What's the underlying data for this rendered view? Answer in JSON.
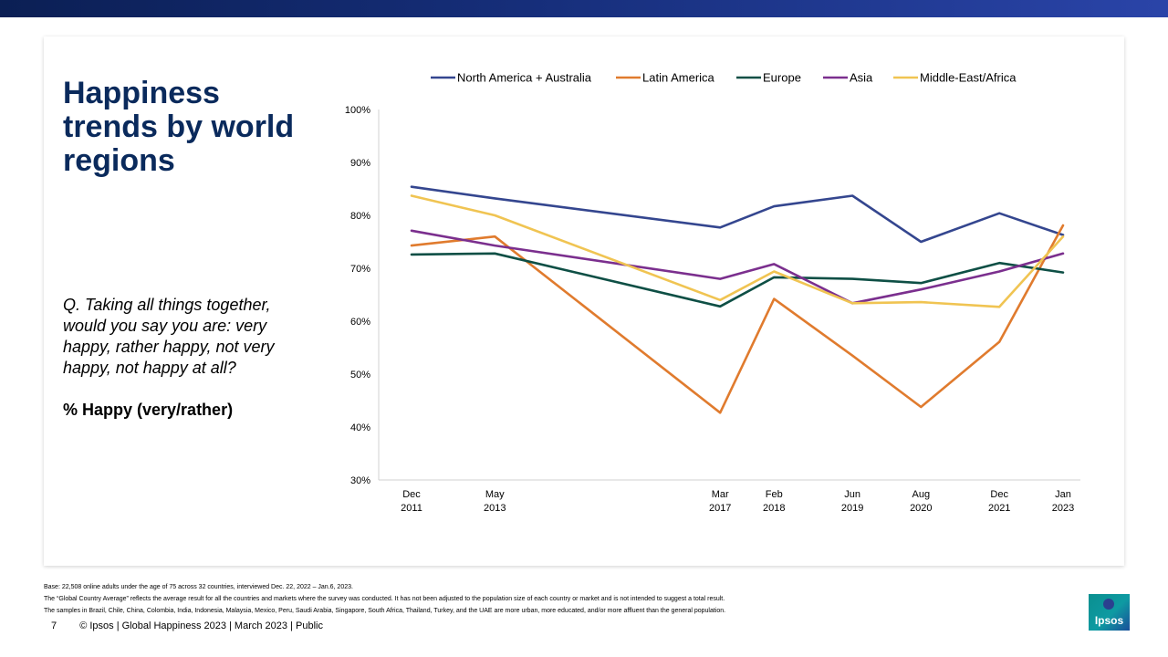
{
  "page": {
    "title_lines": [
      "Happiness",
      "trends by world",
      "regions"
    ],
    "question": "Q. Taking all things together, would you say you are: very happy, rather happy, not very happy, not happy at all?",
    "metric": "% Happy (very/rather)",
    "footnotes": [
      "Base: 22,508 online adults under the age of 75 across 32 countries, interviewed Dec. 22, 2022 – Jan.6, 2023.",
      "The “Global Country Average” reflects the average result for all the countries and markets where the survey was conducted. It has not been adjusted to the population size of each country or market and is not intended to suggest a total result.",
      "The samples in Brazil, Chile, China, Colombia, India, Indonesia, Malaysia, Mexico, Peru, Saudi Arabia, Singapore, South Africa, Thailand, Turkey, and the UAE are more urban, more educated, and/or more affluent than the general population."
    ],
    "page_number": "7",
    "footer_text": "© Ipsos | Global Happiness 2023 | March 2023 | Public",
    "logo_text": "Ipsos",
    "colors": {
      "top_bar": "#162e7a",
      "title": "#0a2a5c"
    }
  },
  "chart_data": {
    "type": "line",
    "title": "",
    "xlabel": "",
    "ylabel": "",
    "ylim": [
      30,
      100
    ],
    "y_ticks": [
      30,
      40,
      50,
      60,
      70,
      80,
      90,
      100
    ],
    "y_tick_labels": [
      "30%",
      "40%",
      "50%",
      "60%",
      "70%",
      "80%",
      "90%",
      "100%"
    ],
    "x": [
      "2011-12",
      "2013-05",
      "2017-03",
      "2018-02",
      "2019-06",
      "2020-08",
      "2021-12",
      "2023-01"
    ],
    "x_labels": [
      [
        "Dec",
        "2011"
      ],
      [
        "May",
        "2013"
      ],
      [
        "Mar",
        "2017"
      ],
      [
        "Feb",
        "2018"
      ],
      [
        "Jun",
        "2019"
      ],
      [
        "Aug",
        "2020"
      ],
      [
        "Dec",
        "2021"
      ],
      [
        "Jan",
        "2023"
      ]
    ],
    "legend_position": "top",
    "grid": false,
    "series": [
      {
        "name": "North America + Australia",
        "color": "#34468f",
        "values": [
          85.4,
          83.2,
          77.7,
          81.7,
          83.7,
          75.0,
          80.4,
          76.3
        ]
      },
      {
        "name": "Latin America",
        "color": "#e07b2e",
        "values": [
          74.3,
          76.0,
          42.7,
          64.2,
          53.5,
          43.8,
          56.1,
          78.1
        ]
      },
      {
        "name": "Europe",
        "color": "#0e4f45",
        "values": [
          72.6,
          72.8,
          62.8,
          68.3,
          68.0,
          67.2,
          71.0,
          69.2
        ]
      },
      {
        "name": "Asia",
        "color": "#7b2f8e",
        "values": [
          77.1,
          74.3,
          68.0,
          70.8,
          63.4,
          66.0,
          69.4,
          72.8
        ]
      },
      {
        "name": "Middle-East/Africa",
        "color": "#f0c452",
        "values": [
          83.7,
          80.0,
          64.0,
          69.4,
          63.4,
          63.6,
          62.7,
          76.0
        ]
      }
    ]
  }
}
